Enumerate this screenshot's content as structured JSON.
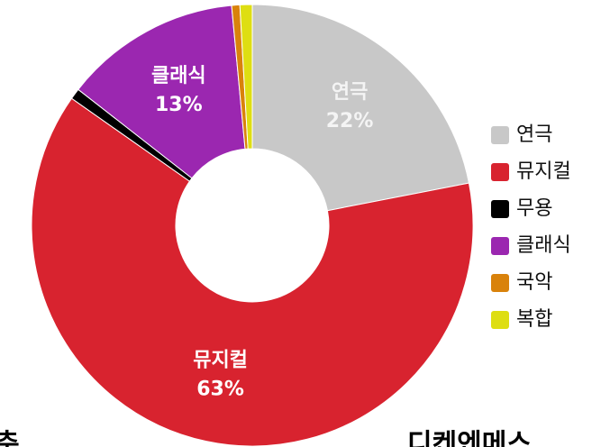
{
  "chart_data": {
    "type": "donut",
    "categories": [
      "연극",
      "뮤지컬",
      "무용",
      "클래식",
      "국악",
      "복합"
    ],
    "values": [
      22,
      63,
      0.8,
      13,
      0.6,
      0.9
    ],
    "value_labels": [
      "22%",
      "63%",
      null,
      "13%",
      null,
      null
    ],
    "colors": [
      "#c8c8c8",
      "#d8232f",
      "#000000",
      "#9b27b0",
      "#d9820b",
      "#dede12"
    ],
    "legend": "right",
    "footer": [
      "춘",
      "디켄엔메스"
    ]
  }
}
